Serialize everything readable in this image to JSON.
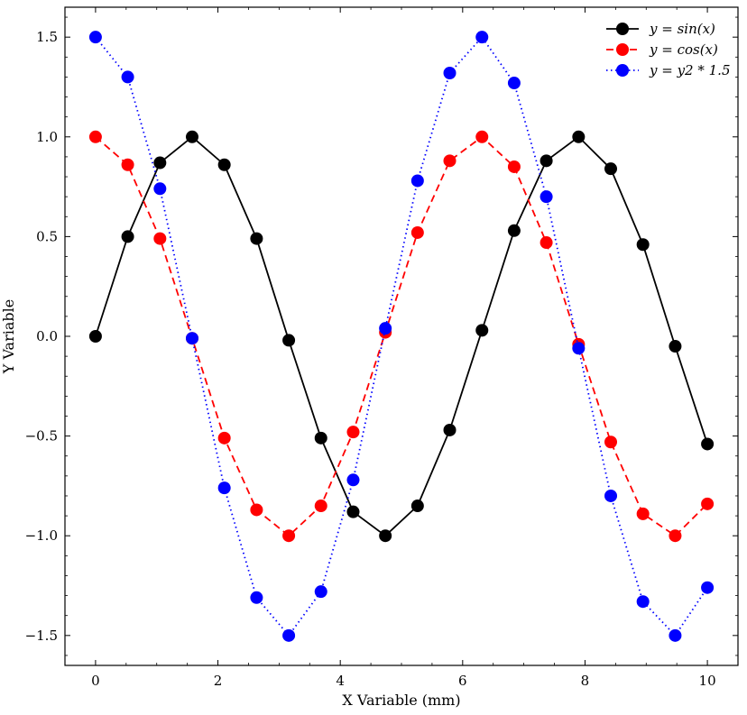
{
  "chart_data": {
    "type": "line",
    "title": "",
    "xlabel": "X Variable (mm)",
    "ylabel": "Y Variable",
    "xlim": [
      -0.5,
      10.5
    ],
    "ylim": [
      -1.65,
      1.65
    ],
    "xticks": [
      0,
      2,
      4,
      6,
      8,
      10
    ],
    "xtick_labels": [
      "0",
      "2",
      "4",
      "6",
      "8",
      "10"
    ],
    "yticks": [
      -1.5,
      -1.0,
      -0.5,
      0.0,
      0.5,
      1.0,
      1.5
    ],
    "ytick_labels": [
      "−1.5",
      "−1.0",
      "−0.5",
      "0.0",
      "0.5",
      "1.0",
      "1.5"
    ],
    "grid": false,
    "legend_position": "top-right",
    "x": [
      0.0,
      0.526,
      1.053,
      1.579,
      2.105,
      2.632,
      3.158,
      3.684,
      4.211,
      4.737,
      5.263,
      5.789,
      6.316,
      6.842,
      7.368,
      7.895,
      8.421,
      8.947,
      9.474,
      10.0
    ],
    "series": [
      {
        "name": "y = sin(x)",
        "color": "#000000",
        "dash": "solid",
        "values": [
          0.0,
          0.5,
          0.87,
          1.0,
          0.86,
          0.49,
          -0.02,
          -0.51,
          -0.88,
          -1.0,
          -0.85,
          -0.47,
          0.03,
          0.53,
          0.88,
          1.0,
          0.84,
          0.46,
          -0.05,
          -0.54
        ]
      },
      {
        "name": "y = cos(x)",
        "color": "#ff0000",
        "dash": "dashed",
        "values": [
          1.0,
          0.86,
          0.49,
          -0.01,
          -0.51,
          -0.87,
          -1.0,
          -0.85,
          -0.48,
          0.02,
          0.52,
          0.88,
          1.0,
          0.85,
          0.47,
          -0.04,
          -0.53,
          -0.89,
          -1.0,
          -0.84
        ]
      },
      {
        "name": "y = y2 * 1.5",
        "color": "#0000ff",
        "dash": "dotted",
        "values": [
          1.5,
          1.3,
          0.74,
          -0.01,
          -0.76,
          -1.31,
          -1.5,
          -1.28,
          -0.72,
          0.04,
          0.78,
          1.32,
          1.5,
          1.27,
          0.7,
          -0.06,
          -0.8,
          -1.33,
          -1.5,
          -1.26
        ]
      }
    ]
  }
}
